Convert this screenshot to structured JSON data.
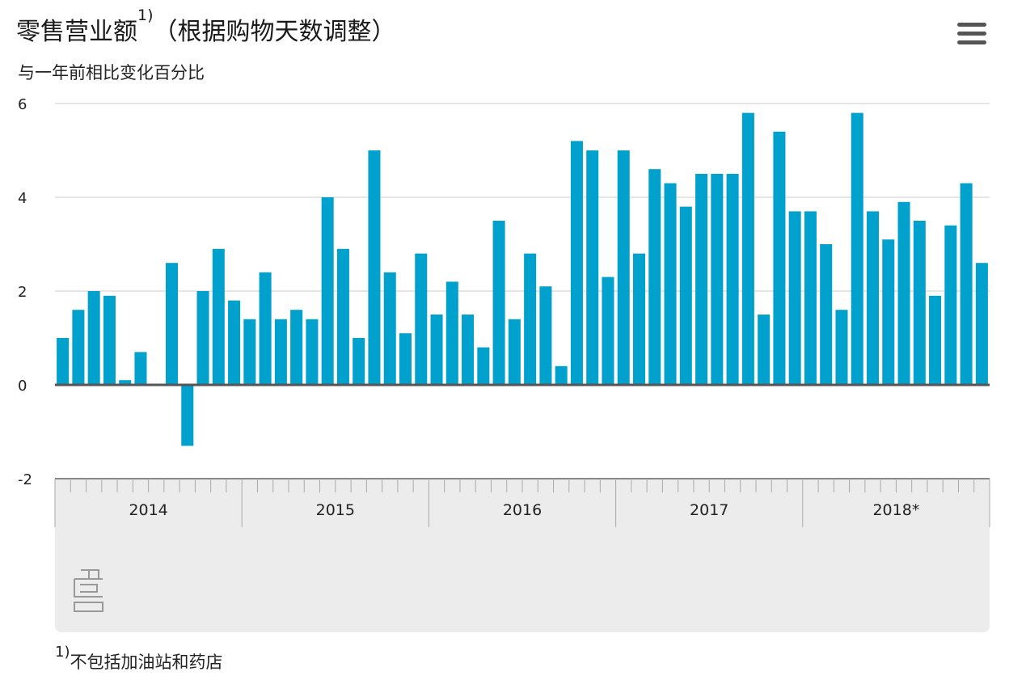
{
  "header": {
    "title": "零售营业额",
    "title_sup": "1)",
    "title_rest": "（根据购物天数调整）",
    "subtitle": "与一年前相比变化百分比",
    "menu_icon": "hamburger-menu-icon"
  },
  "footnote": {
    "marker": "1)",
    "text": "不包括加油站和药店"
  },
  "colors": {
    "bar": "#00a1cd",
    "grid": "#cccccc",
    "zero_line": "#555555",
    "axis_panel": "#ececec",
    "logo": "#999999"
  },
  "chart_data": {
    "type": "bar",
    "ylim": [
      -2,
      6
    ],
    "yticks": [
      -2,
      0,
      2,
      4,
      6
    ],
    "ytick_labels": [
      "-2",
      "0",
      "2",
      "4",
      "6"
    ],
    "grid": true,
    "years": [
      "2014",
      "2015",
      "2016",
      "2017",
      "2018*"
    ],
    "months_per_year": 12,
    "values": [
      1.0,
      1.6,
      2.0,
      1.9,
      0.1,
      0.7,
      0.0,
      2.6,
      -1.3,
      2.0,
      2.9,
      1.8,
      1.4,
      2.4,
      1.4,
      1.6,
      1.4,
      4.0,
      2.9,
      1.0,
      5.0,
      2.4,
      1.1,
      2.8,
      1.5,
      2.2,
      1.5,
      0.8,
      3.5,
      1.4,
      2.8,
      2.1,
      0.4,
      5.2,
      5.0,
      2.3,
      5.0,
      2.8,
      4.6,
      4.3,
      3.8,
      4.5,
      4.5,
      4.5,
      5.8,
      1.5,
      5.4,
      3.7,
      3.7,
      3.0,
      1.6,
      5.8,
      3.7,
      3.1,
      3.9,
      3.5,
      1.9,
      3.4,
      4.3,
      2.6
    ]
  }
}
